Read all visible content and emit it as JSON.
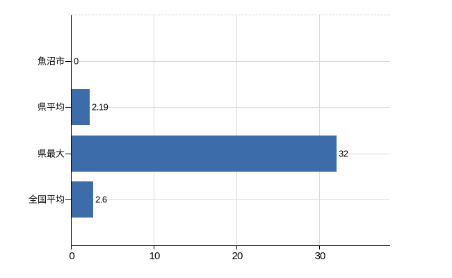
{
  "chart_data": {
    "type": "bar",
    "orientation": "horizontal",
    "title": "",
    "categories": [
      "魚沼市",
      "県平均",
      "県最大",
      "全国平均"
    ],
    "values": [
      0,
      2.19,
      32,
      2.6
    ],
    "value_labels": [
      "0",
      "2.19",
      "32",
      "2.6"
    ],
    "x_tick_values": [
      0,
      10,
      20,
      30
    ],
    "x_tick_labels": [
      "0",
      "10",
      "20",
      "30"
    ],
    "xlim": [
      0,
      38.5
    ],
    "grid": "vertical gridlines at 10/20/30; light horizontal line at each category row; dashed top border",
    "legend_position": "none",
    "colors": {
      "bar": "#3d6cab",
      "gridline": "#d9d9d9",
      "row_line": "#d7dad4",
      "axis": "#000000",
      "text": "#000000",
      "background": "#ffffff"
    }
  }
}
